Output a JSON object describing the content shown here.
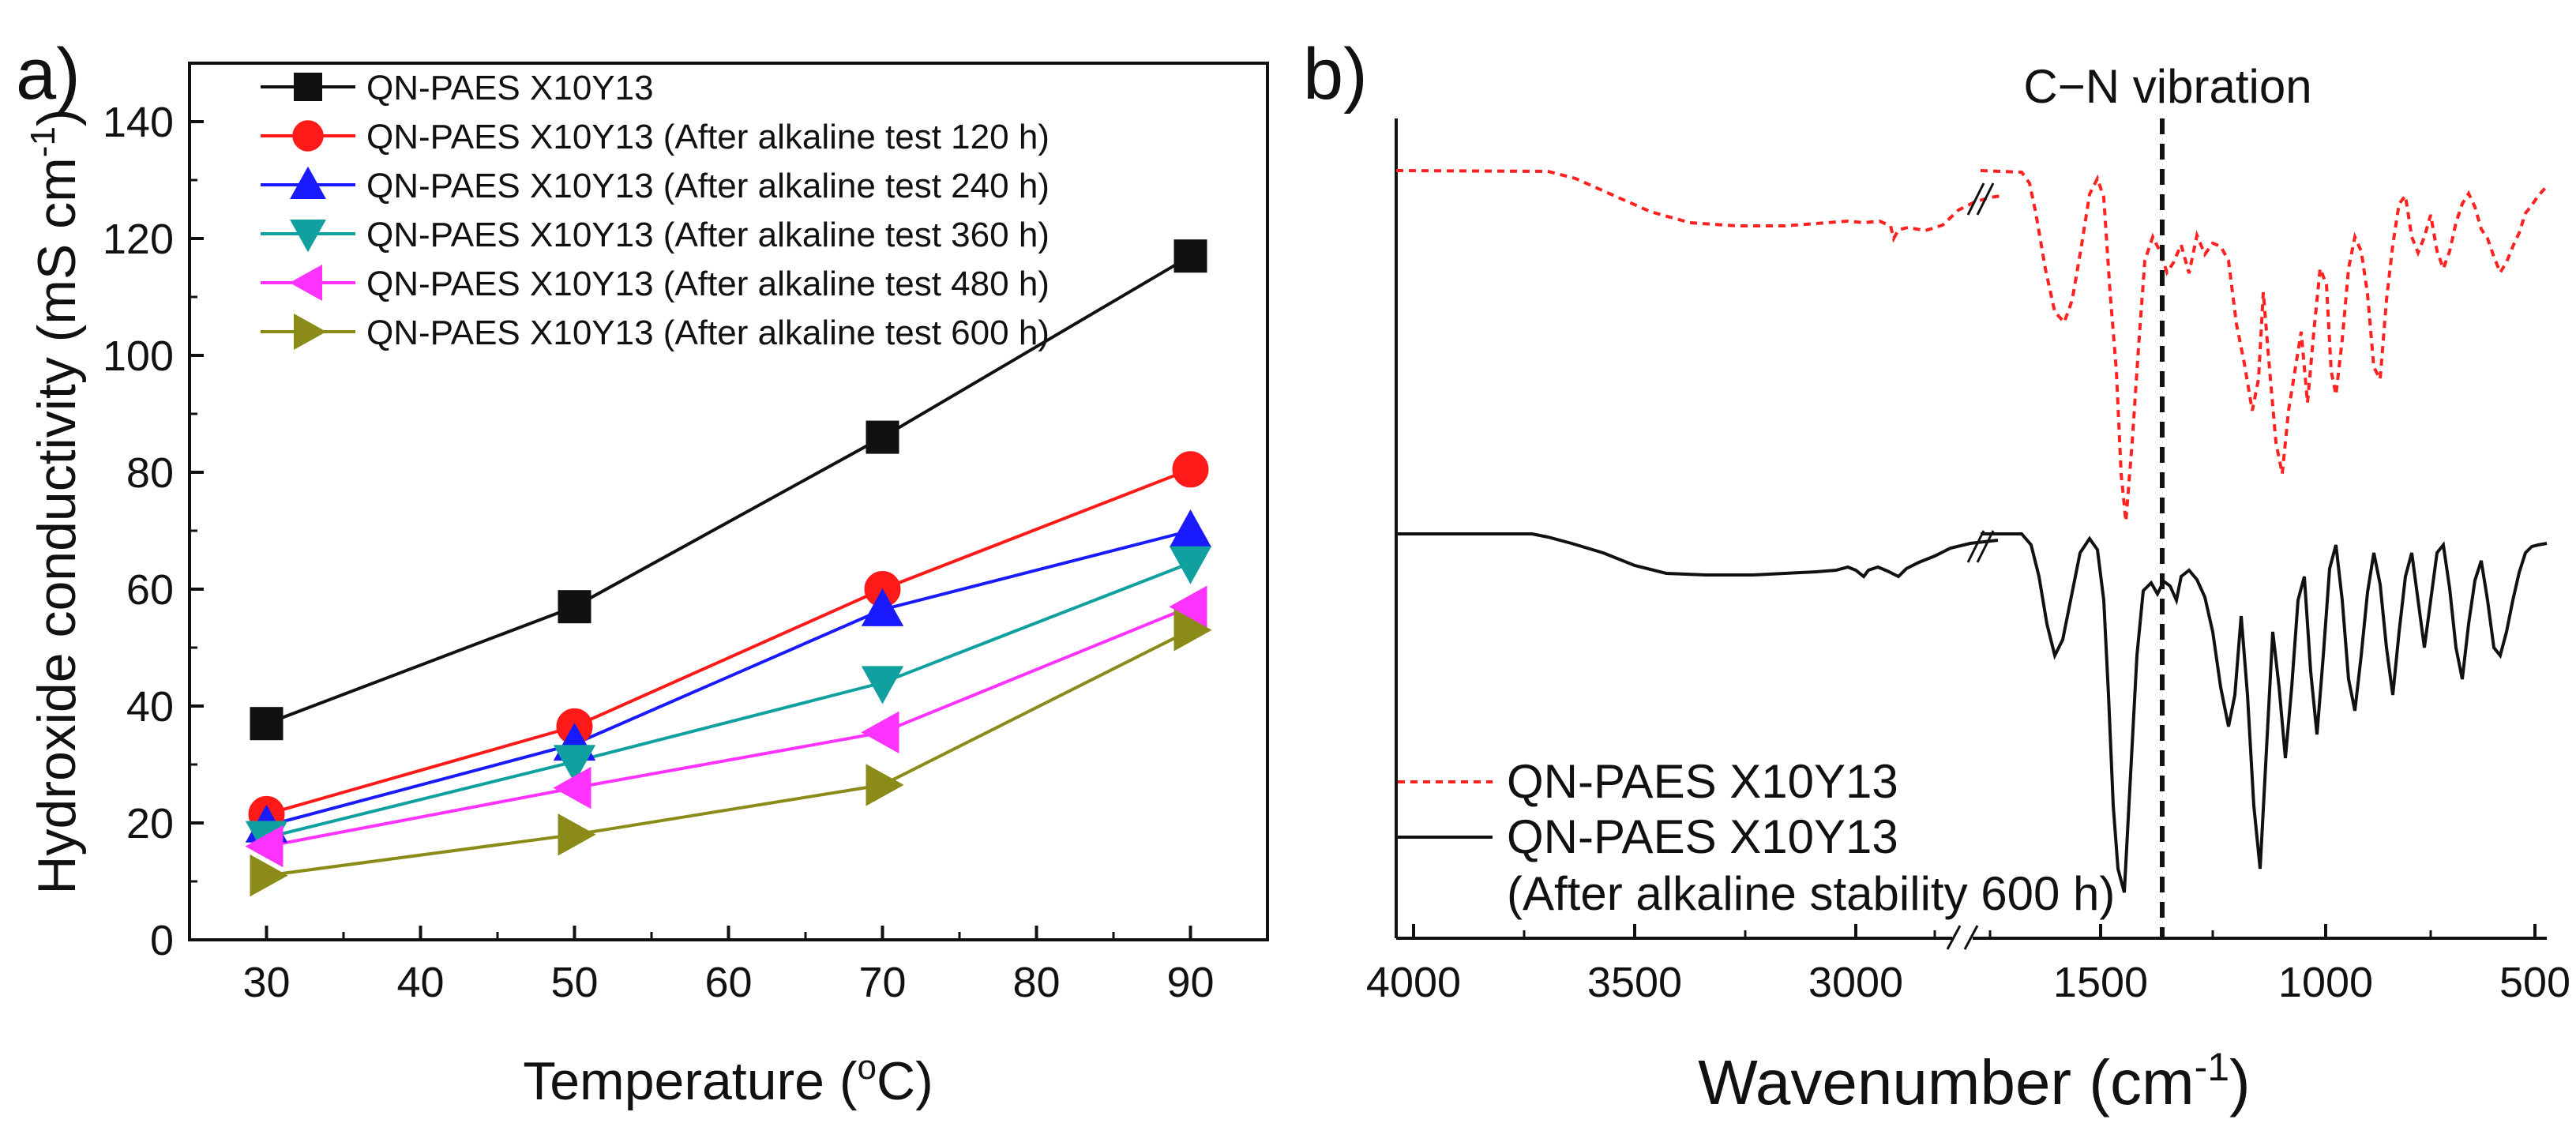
{
  "chart_data": [
    {
      "panel_label": "a)",
      "type": "line",
      "xlabel_main": "Temperature (",
      "xlabel_sup": "o",
      "xlabel_tail": "C)",
      "ylabel_main": "Hydroxide conductivity (mS cm",
      "ylabel_sup": "-1",
      "ylabel_tail": ")",
      "xlim": [
        25,
        95
      ],
      "ylim": [
        0,
        150
      ],
      "xticks": [
        30,
        40,
        50,
        60,
        70,
        80,
        90
      ],
      "yticks": [
        0,
        20,
        40,
        60,
        80,
        100,
        120,
        140
      ],
      "x": [
        30,
        50,
        70,
        90
      ],
      "legend_position": "top-left",
      "series": [
        {
          "name": "QN-PAES X10Y13",
          "values": [
            37,
            57,
            86,
            117
          ],
          "color": "#111111",
          "marker": "square"
        },
        {
          "name": "QN-PAES X10Y13 (After alkaline test 120 h)",
          "values": [
            21.5,
            36.5,
            60,
            80.5
          ],
          "color": "#ff1a1a",
          "marker": "circle"
        },
        {
          "name": "QN-PAES X10Y13 (After alkaline test 240 h)",
          "values": [
            19.5,
            33.5,
            56.5,
            70
          ],
          "color": "#1a1aff",
          "marker": "triangle-up"
        },
        {
          "name": "QN-PAES X10Y13 (After alkaline test 360 h)",
          "values": [
            17.5,
            30.5,
            44,
            64.5
          ],
          "color": "#11a0a0",
          "marker": "triangle-down"
        },
        {
          "name": "QN-PAES X10Y13 (After alkaline test 480 h)",
          "values": [
            16,
            26,
            35.5,
            57
          ],
          "color": "#ff33ff",
          "marker": "triangle-left"
        },
        {
          "name": "QN-PAES X10Y13 (After alkaline test 600 h)",
          "values": [
            11,
            18,
            26.5,
            53
          ],
          "color": "#8b8b1a",
          "marker": "triangle-right"
        }
      ]
    },
    {
      "panel_label": "b)",
      "type": "line",
      "xlabel_main": "Wavenumber (cm",
      "xlabel_sup": "-1",
      "xlabel_tail": ")",
      "xticks": [
        4000,
        3500,
        3000,
        1500,
        1000,
        500
      ],
      "axis_break": "between 2750 and 1750",
      "annotation": "C−N vibration",
      "annotation_wavenumber": 1380,
      "legend_position": "bottom-left",
      "series": [
        {
          "name": "QN-PAES X10Y13",
          "color": "#ff2020",
          "style": "dotted"
        },
        {
          "name": "QN-PAES X10Y13",
          "name_line2": "(After alkaline stability 600 h)",
          "color": "#111111",
          "style": "solid"
        }
      ]
    }
  ]
}
